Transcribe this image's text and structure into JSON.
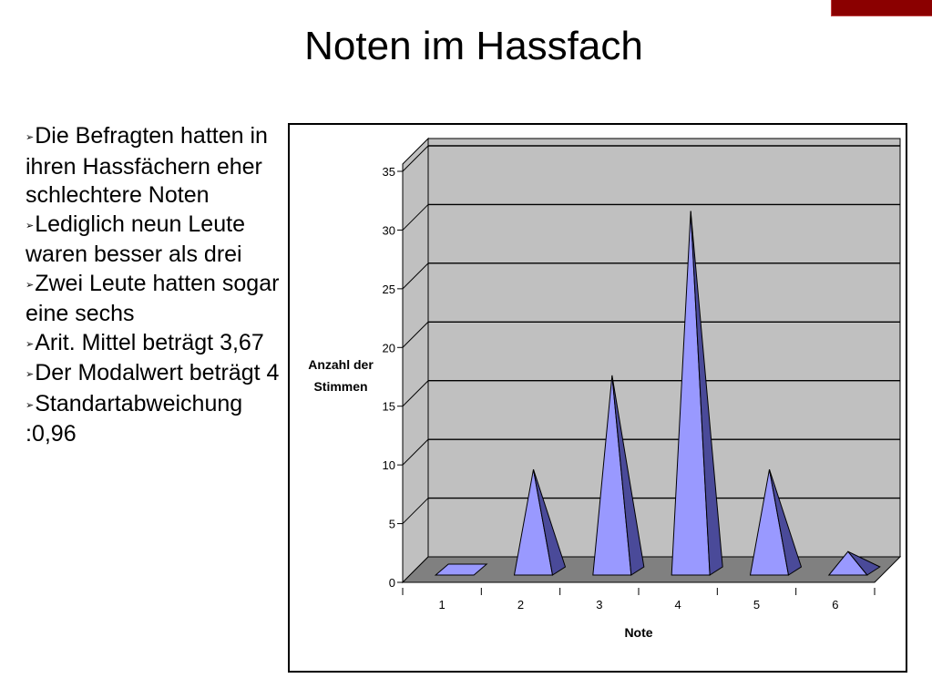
{
  "slide": {
    "title": "Noten im Hassfach",
    "bullets": [
      "Die Befragten hatten in ihren Hassfächern eher schlechtere Noten",
      "Lediglich neun Leute waren besser als drei",
      "Zwei Leute hatten sogar eine sechs",
      "Arit. Mittel beträgt 3,67",
      "Der Modalwert beträgt 4",
      "Standartabweichung :0,96"
    ],
    "bullet_icon": "arrowhead-bullet-icon",
    "colors": {
      "corner_bar": "#8b0000",
      "pyramid_front": "#9999ff",
      "pyramid_side": "#4a4a99",
      "wall": "#c0c0c0",
      "floor": "#808080"
    }
  },
  "chart_data": {
    "type": "bar",
    "style": "3d-pyramid",
    "categories": [
      "1",
      "2",
      "3",
      "4",
      "5",
      "6"
    ],
    "values": [
      0,
      9,
      17,
      31,
      9,
      2
    ],
    "xlabel": "Note",
    "ylabel_lines": [
      "Anzahl der",
      "Stimmen"
    ],
    "ylim": [
      0,
      35
    ],
    "yticks": [
      "0",
      "5",
      "10",
      "15",
      "20",
      "25",
      "30",
      "35"
    ],
    "grid": true,
    "legend": "none"
  }
}
